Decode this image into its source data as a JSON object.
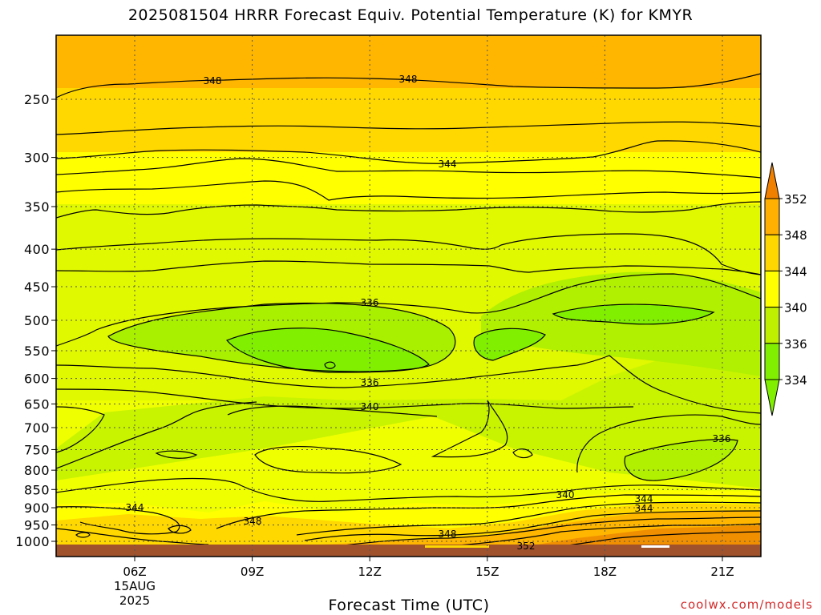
{
  "chart_data": {
    "type": "heatmap",
    "title": "2025081504 HRRR Forecast Equiv. Potential Temperature (K) for KMYR",
    "xlabel": "Forecast Time (UTC)",
    "ylabel": "",
    "y_axis": {
      "scale": "log-pressure (reversed)",
      "ticks": [
        250,
        300,
        350,
        400,
        450,
        500,
        550,
        600,
        650,
        700,
        750,
        800,
        850,
        900,
        950,
        1000
      ]
    },
    "x_axis": {
      "ticks": [
        {
          "label": "06Z",
          "sub": [
            "15AUG",
            "2025"
          ]
        },
        {
          "label": "09Z"
        },
        {
          "label": "12Z"
        },
        {
          "label": "15Z"
        },
        {
          "label": "18Z"
        },
        {
          "label": "21Z"
        }
      ]
    },
    "colorbar": {
      "ticks": [
        334,
        336,
        340,
        344,
        348,
        352
      ],
      "colors": [
        "#80f000",
        "#bff000",
        "#ffff00",
        "#ffd700",
        "#ffb000",
        "#f08000"
      ],
      "extend": "both"
    },
    "contour_labels": [
      "348",
      "348",
      "344",
      "336",
      "336",
      "340",
      "336",
      "340",
      "344",
      "348",
      "344",
      "344",
      "348",
      "352"
    ],
    "grid": true
  },
  "watermark": "coolwx.com/models"
}
